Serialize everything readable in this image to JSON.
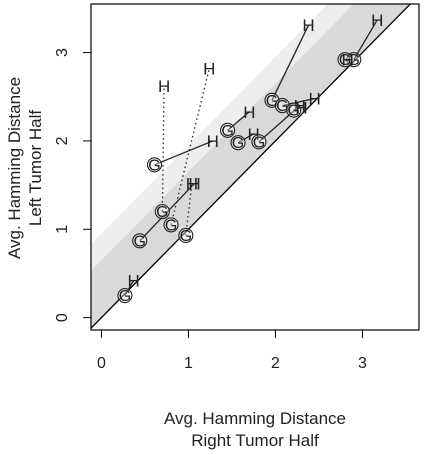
{
  "chart_data": {
    "type": "scatter",
    "title": "",
    "xlabel_lines": [
      "Avg. Hamming Distance",
      "Right Tumor Half"
    ],
    "ylabel_lines": [
      "Avg. Hamming Distance",
      "Left Tumor Half"
    ],
    "xlim": [
      -0.12,
      3.65
    ],
    "ylim": [
      -0.14,
      3.55
    ],
    "xticks": [
      0,
      1,
      2,
      3
    ],
    "yticks": [
      0,
      1,
      2,
      3
    ],
    "grid": false,
    "bands": [
      {
        "name": "outer",
        "offset": 0.95,
        "color": "#eeeeee"
      },
      {
        "name": "inner",
        "offset": 0.65,
        "color": "#d9d9d9"
      }
    ],
    "marker_labels": {
      "G": "G",
      "H": "H"
    },
    "pairs": [
      {
        "g": [
          0.27,
          0.25
        ],
        "h": [
          0.37,
          0.42
        ],
        "style": "solid"
      },
      {
        "g": [
          0.44,
          0.87
        ],
        "h": [
          1.07,
          1.52
        ],
        "style": "solid"
      },
      {
        "g": [
          0.7,
          1.2
        ],
        "h": [
          0.72,
          2.62
        ],
        "style": "dotted"
      },
      {
        "g": [
          0.8,
          1.05
        ],
        "h": [
          1.24,
          2.82
        ],
        "style": "dotted"
      },
      {
        "g": [
          0.97,
          0.93
        ],
        "h": [
          1.04,
          1.52
        ],
        "style": "dotted"
      },
      {
        "g": [
          0.61,
          1.73
        ],
        "h": [
          1.28,
          2.0
        ],
        "style": "solid"
      },
      {
        "g": [
          1.45,
          2.12
        ],
        "h": [
          1.7,
          2.33
        ],
        "style": "solid"
      },
      {
        "g": [
          1.57,
          1.98
        ],
        "h": [
          1.75,
          2.08
        ],
        "style": "solid"
      },
      {
        "g": [
          1.81,
          1.99
        ],
        "h": [
          2.28,
          2.4
        ],
        "style": "solid"
      },
      {
        "g": [
          1.96,
          2.46
        ],
        "h": [
          2.38,
          3.31
        ],
        "style": "solid"
      },
      {
        "g": [
          2.08,
          2.4
        ],
        "h": [
          2.45,
          2.48
        ],
        "style": "solid"
      },
      {
        "g": [
          2.21,
          2.35
        ],
        "h": [
          2.3,
          2.38
        ],
        "style": "solid"
      },
      {
        "g": [
          2.9,
          2.92
        ],
        "h": [
          3.17,
          3.37
        ],
        "style": "solid"
      },
      {
        "g": [
          2.8,
          2.92
        ],
        "h": [
          2.83,
          2.92
        ],
        "style": "solid"
      }
    ]
  }
}
